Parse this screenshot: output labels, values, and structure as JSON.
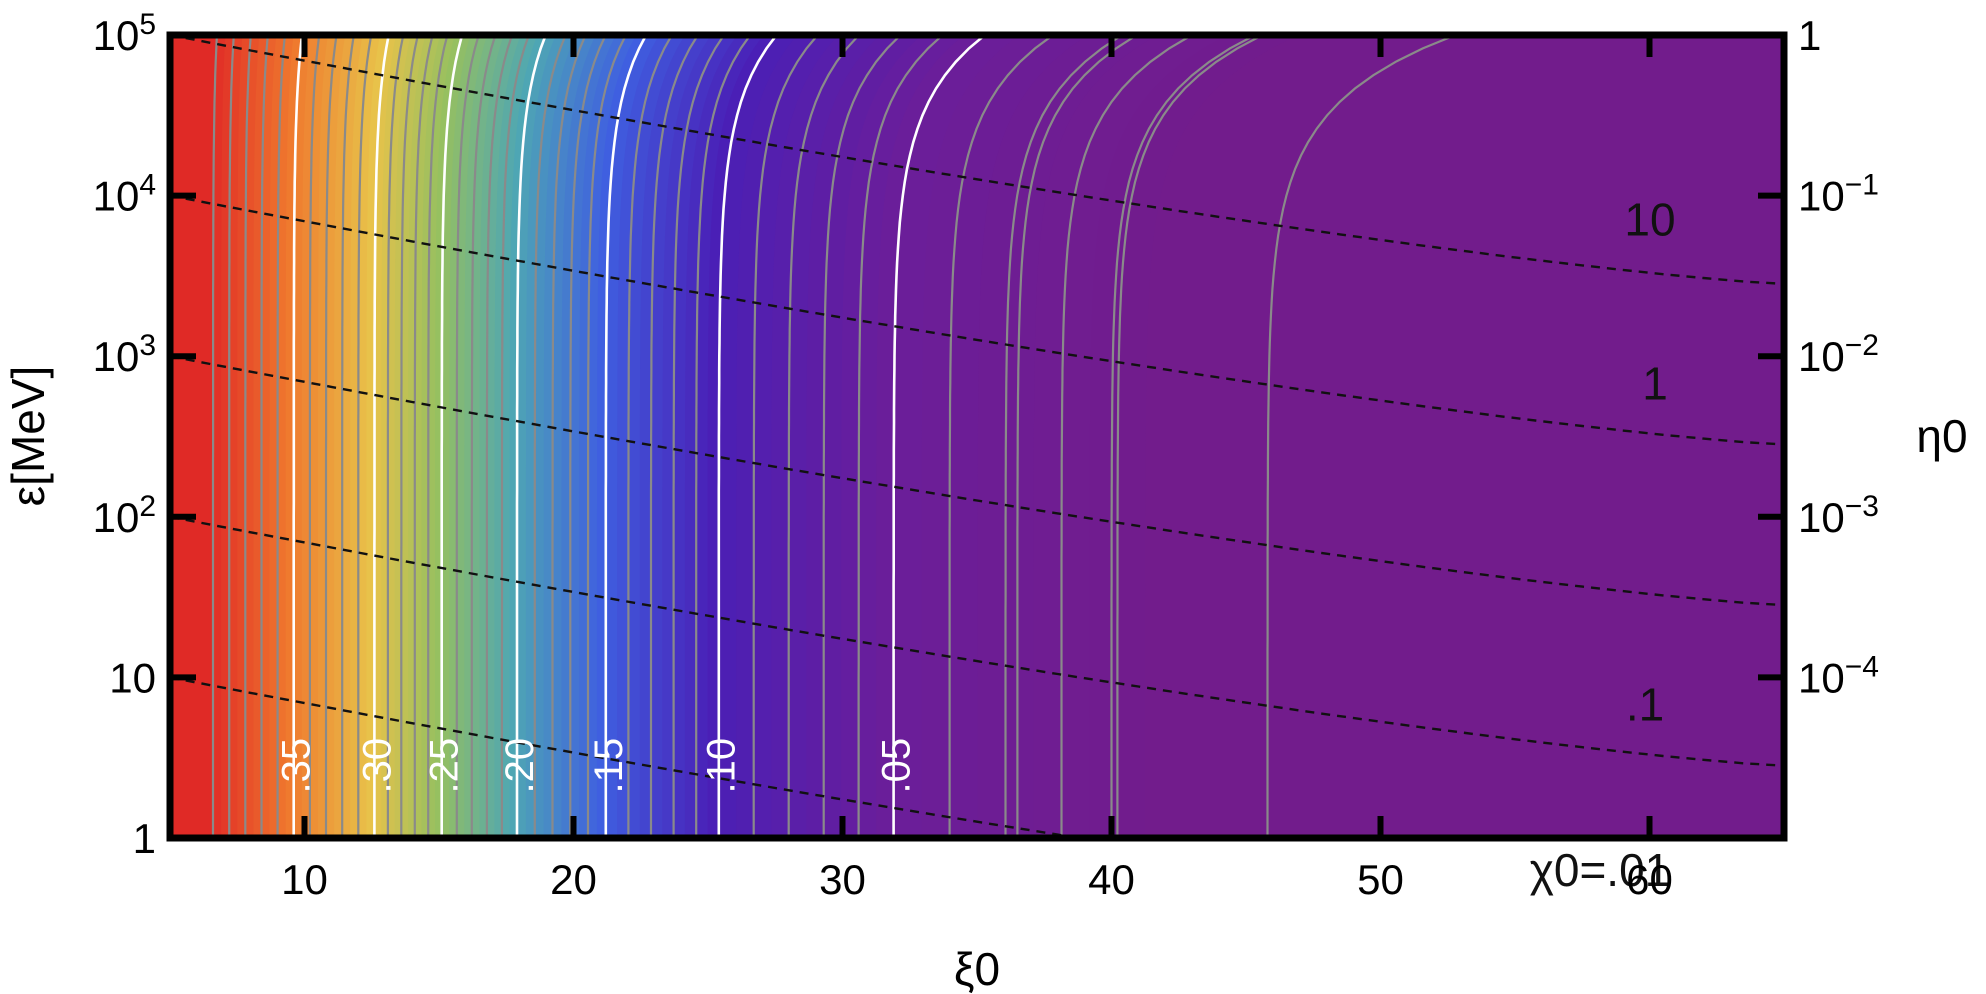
{
  "chart_data": {
    "type": "heatmap",
    "title": "",
    "xlabel": "ξ0",
    "ylabel": "ε[MeV]",
    "ylabel2": "η0",
    "xlim": [
      5,
      65
    ],
    "ylim": [
      1,
      100000
    ],
    "yscale": "log",
    "x_ticks": [
      {
        "value": 10,
        "label": "10"
      },
      {
        "value": 20,
        "label": "20"
      },
      {
        "value": 30,
        "label": "30"
      },
      {
        "value": 40,
        "label": "40"
      },
      {
        "value": 50,
        "label": "50"
      },
      {
        "value": 60,
        "label": "60"
      }
    ],
    "y_ticks_left": [
      {
        "value": 1,
        "label": "1"
      },
      {
        "value": 10,
        "label": "10"
      },
      {
        "value": 100,
        "label": "10",
        "exp": "2"
      },
      {
        "value": 1000,
        "label": "10",
        "exp": "3"
      },
      {
        "value": 10000,
        "label": "10",
        "exp": "4"
      },
      {
        "value": 100000,
        "label": "10",
        "exp": "5"
      }
    ],
    "y_ticks_right": [
      {
        "value": 100000,
        "label": "1",
        "exp": ""
      },
      {
        "value": 10000,
        "label": "10",
        "exp": "−1"
      },
      {
        "value": 1000,
        "label": "10",
        "exp": "−2"
      },
      {
        "value": 100,
        "label": "10",
        "exp": "−3"
      },
      {
        "value": 10,
        "label": "10",
        "exp": "−4"
      }
    ],
    "colormap": [
      "#e02a26",
      "#ef7a2e",
      "#e8c24a",
      "#96c060",
      "#4ea6b4",
      "#3f5fe0",
      "#4a1fb6",
      "#6a1e9a",
      "#721c8c"
    ],
    "color_range": [
      0,
      0.4
    ],
    "white_contours": [
      {
        "value": 0.35,
        "label": ".35",
        "x_at_bottom": 9.6
      },
      {
        "value": 0.3,
        "label": ".30",
        "x_at_bottom": 12.6
      },
      {
        "value": 0.25,
        "label": ".25",
        "x_at_bottom": 15.1
      },
      {
        "value": 0.2,
        "label": ".20",
        "x_at_bottom": 17.9
      },
      {
        "value": 0.15,
        "label": ".15",
        "x_at_bottom": 21.2
      },
      {
        "value": 0.1,
        "label": ".10",
        "x_at_bottom": 25.4
      },
      {
        "value": 0.05,
        "label": ".05",
        "x_at_bottom": 31.9
      }
    ],
    "gray_contour_spacing": 0.01,
    "gray_contour_extra_x": [
      36.5,
      40.0,
      45.8
    ],
    "dashed_lines": [
      {
        "label": "10",
        "log_eps_left": 5.0,
        "log_eps_right": 3.45
      },
      {
        "label": "1",
        "log_eps_left": 4.0,
        "log_eps_right": 2.45
      },
      {
        "label": "",
        "log_eps_left": 3.0,
        "log_eps_right": 1.45
      },
      {
        "label": ".1",
        "log_eps_left": 2.0,
        "log_eps_right": 0.45
      },
      {
        "label": "χ0=.01",
        "log_eps_left": 1.0,
        "log_eps_right": -0.55
      }
    ]
  }
}
